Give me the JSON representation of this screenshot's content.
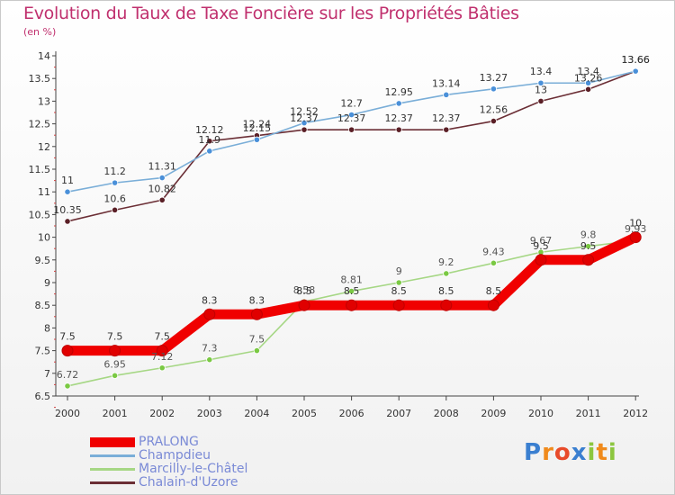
{
  "title": "Evolution du Taux de Taxe Foncière sur les Propriétés Bâties",
  "unit": "(en %)",
  "logo": {
    "letters": [
      "P",
      "r",
      "o",
      "x",
      "i",
      "t",
      "i"
    ],
    "colors": [
      "#3a7fd0",
      "#f08a1c",
      "#e84b2a",
      "#3a7fd0",
      "#8cc63f",
      "#f08a1c",
      "#8cc63f"
    ]
  },
  "chart_data": {
    "type": "line",
    "title": "Evolution du Taux de Taxe Foncière sur les Propriétés Bâties",
    "ylabel": "(en %)",
    "xlabel": "",
    "ylim": [
      6.5,
      14
    ],
    "yticks": [
      "6.5",
      "7",
      "7.5",
      "8",
      "8.5",
      "9",
      "9.5",
      "10",
      "10.5",
      "11",
      "11.5",
      "12",
      "12.5",
      "13",
      "13.5",
      "14"
    ],
    "categories": [
      "2000",
      "2001",
      "2002",
      "2003",
      "2004",
      "2005",
      "2006",
      "2007",
      "2008",
      "2009",
      "2010",
      "2011",
      "2012"
    ],
    "series": [
      {
        "name": "Marcilly-le-Châtel",
        "color": "#a6d785",
        "dot": "#7ac943",
        "values": [
          6.72,
          6.95,
          7.12,
          7.3,
          7.5,
          8.58,
          8.81,
          9,
          9.2,
          9.43,
          9.67,
          9.8,
          9.93
        ],
        "labels": [
          "6.72",
          "6.95",
          "7.12",
          "7.3",
          "7.5",
          "8.58",
          "8.81",
          "9",
          "9.2",
          "9.43",
          "9.67",
          "9.8",
          "9.93"
        ]
      },
      {
        "name": "Chalain-d'Uzore",
        "color": "#6b2e35",
        "dot": "#5a1f26",
        "values": [
          10.35,
          10.6,
          10.82,
          12.12,
          12.24,
          12.37,
          12.37,
          12.37,
          12.37,
          12.56,
          13,
          13.26,
          13.66
        ],
        "labels": [
          "10.35",
          "10.6",
          "10.82",
          "12.12",
          "12.24",
          "12.37",
          "12.37",
          "12.37",
          "12.37",
          "12.56",
          "13",
          "13.26",
          "13.66"
        ]
      },
      {
        "name": "Champdieu",
        "color": "#7aaed8",
        "dot": "#4a90d9",
        "values": [
          11,
          11.2,
          11.31,
          11.9,
          12.15,
          12.52,
          12.7,
          12.95,
          13.14,
          13.27,
          13.4,
          13.4,
          13.66
        ],
        "labels": [
          "11",
          "11.2",
          "11.31",
          "11.9",
          "12.15",
          "12.52",
          "12.7",
          "12.95",
          "13.14",
          "13.27",
          "13.4",
          "13.4",
          "13.66"
        ]
      },
      {
        "name": "PRALONG",
        "color": "#f00000",
        "dot": "#e00000",
        "values": [
          7.5,
          7.5,
          7.5,
          8.3,
          8.3,
          8.5,
          8.5,
          8.5,
          8.5,
          8.5,
          9.5,
          9.5,
          10
        ],
        "labels": [
          "7.5",
          "7.5",
          "7.5",
          "8.3",
          "8.3",
          "8.5",
          "8.5",
          "8.5",
          "8.5",
          "8.5",
          "9.5",
          "9.5",
          "10"
        ]
      }
    ],
    "legend": [
      "PRALONG",
      "Champdieu",
      "Marcilly-le-Châtel",
      "Chalain-d'Uzore"
    ],
    "legend_position": "bottom-left",
    "grid": false
  }
}
